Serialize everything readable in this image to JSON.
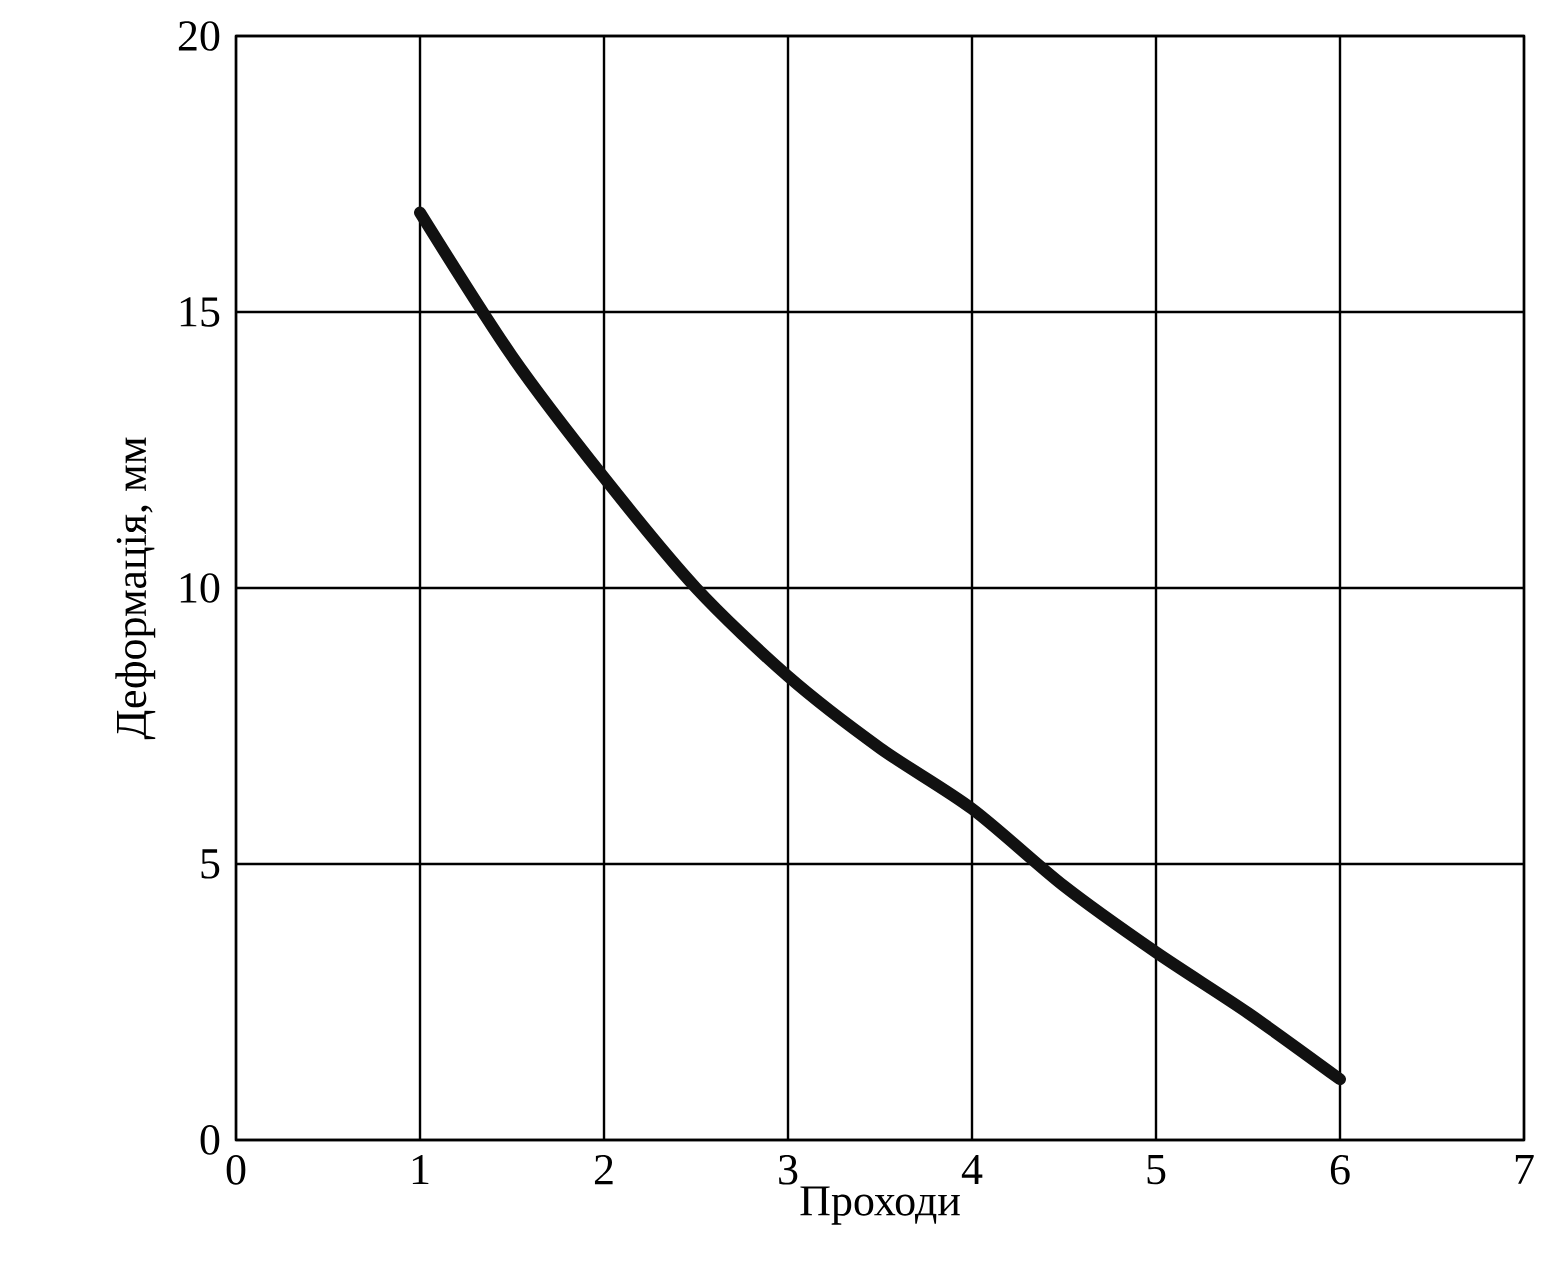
{
  "chart_data": {
    "type": "line",
    "xlabel": "Проходи",
    "ylabel": "Деформація, мм",
    "xlim": [
      0,
      7
    ],
    "ylim": [
      0,
      20
    ],
    "xticks": [
      0,
      1,
      2,
      3,
      4,
      5,
      6,
      7
    ],
    "yticks": [
      0,
      5,
      10,
      15,
      20
    ],
    "grid": true,
    "line_style": "solid",
    "series": [
      {
        "color": "#111111",
        "x": [
          1,
          1.5,
          2,
          2.5,
          3,
          3.5,
          4,
          4.5,
          5,
          5.5,
          6
        ],
        "values": [
          16.8,
          14.2,
          12.0,
          10.0,
          8.4,
          7.1,
          6.0,
          4.6,
          3.4,
          2.3,
          1.1
        ]
      }
    ]
  }
}
